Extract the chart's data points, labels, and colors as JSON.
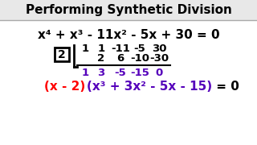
{
  "title": "Performing Synthetic Division",
  "title_color": "#000000",
  "title_bg": "#e8e8e8",
  "bg_color": "#ffffff",
  "equation": "x⁴ + x³ - 11x² - 5x + 30 = 0",
  "divisor": "2",
  "row1": [
    "1",
    "1",
    "-11",
    "-5",
    "30"
  ],
  "row2": [
    "2",
    "6",
    "-10",
    "-30"
  ],
  "row3": [
    "1",
    "3",
    "-5",
    "-15",
    "0"
  ],
  "result_red": "(x - 2)",
  "result_purple": "(x³ + 3x² - 5x - 15)",
  "result_end": " = 0",
  "row3_color": "#5500bb",
  "result_red_color": "#ff0000",
  "result_purple_color": "#5500bb",
  "result_black_color": "#000000",
  "border_color": "#aaaaaa"
}
